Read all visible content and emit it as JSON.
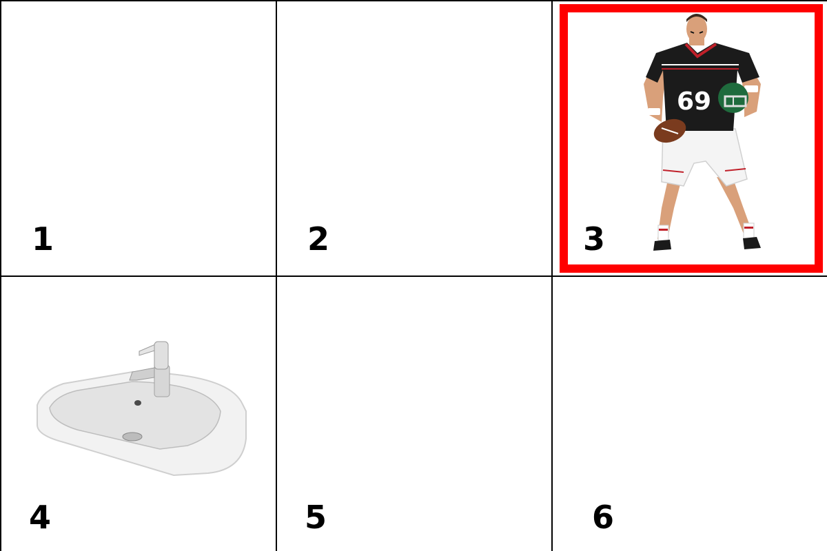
{
  "grid": {
    "tiles": [
      {
        "label": "1",
        "content": "empty"
      },
      {
        "label": "2",
        "content": "empty"
      },
      {
        "label": "3",
        "content": "american-football-player",
        "selected": true,
        "jersey_number": "69"
      },
      {
        "label": "4",
        "content": "bathroom-sink"
      },
      {
        "label": "5",
        "content": "empty"
      },
      {
        "label": "6",
        "content": "empty"
      }
    ],
    "selection_color": "#ff0000"
  }
}
